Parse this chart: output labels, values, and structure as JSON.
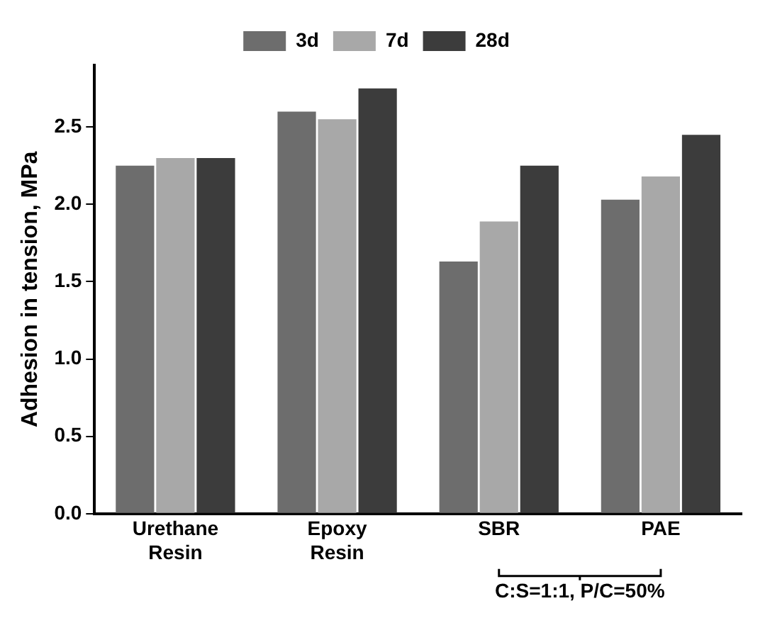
{
  "chart_data": {
    "type": "bar",
    "ylabel": "Adhesion in tension, MPa",
    "categories": [
      "Urethane Resin",
      "Epoxy Resin",
      "SBR",
      "PAE"
    ],
    "series": [
      {
        "name": "3d",
        "color": "#6d6d6d",
        "values": [
          2.25,
          2.6,
          1.63,
          2.03
        ]
      },
      {
        "name": "7d",
        "color": "#a8a8a8",
        "values": [
          2.3,
          2.55,
          1.89,
          2.18
        ]
      },
      {
        "name": "28d",
        "color": "#3c3c3c",
        "values": [
          2.3,
          2.75,
          2.25,
          2.45
        ]
      }
    ],
    "ylim": [
      0,
      2.9
    ],
    "yticks": [
      {
        "value": 0,
        "label": "0.0"
      },
      {
        "value": 0.5,
        "label": "0.5"
      },
      {
        "value": 1,
        "label": "1.0"
      },
      {
        "value": 1.5,
        "label": "1.5"
      },
      {
        "value": 2,
        "label": "2.0"
      },
      {
        "value": 2.5,
        "label": "2.5"
      }
    ],
    "grid": false,
    "legend": "top",
    "annotations": [
      "C:S=1:1, P/C=50%"
    ]
  }
}
